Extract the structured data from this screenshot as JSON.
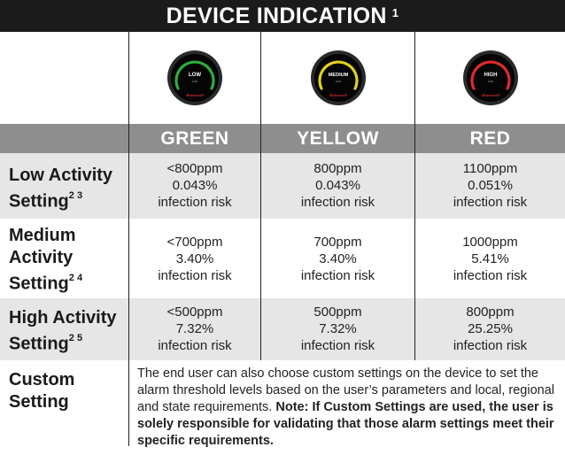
{
  "title": "DEVICE INDICATION",
  "title_sup": "1",
  "devices": [
    {
      "screen_label": "LOW",
      "ring_color": "#2fae3c",
      "brand": "Honeywell"
    },
    {
      "screen_label": "MEDIUM",
      "ring_color": "#e2d11c",
      "brand": "Honeywell"
    },
    {
      "screen_label": "HIGH",
      "ring_color": "#e02a2a",
      "brand": "Honeywell"
    }
  ],
  "columns": [
    "GREEN",
    "YELLOW",
    "RED"
  ],
  "rows": [
    {
      "label_lines": [
        "Low Activity",
        "Setting"
      ],
      "label_sup": "2 3",
      "cells": [
        [
          "<800ppm",
          "0.043%",
          "infection risk"
        ],
        [
          "800ppm",
          "0.043%",
          "infection risk"
        ],
        [
          "1100ppm",
          "0.051%",
          "infection risk"
        ]
      ]
    },
    {
      "label_lines": [
        "Medium",
        "Activity",
        "Setting"
      ],
      "label_sup": "2 4",
      "cells": [
        [
          "<700ppm",
          "3.40%",
          "infection risk"
        ],
        [
          "700ppm",
          "3.40%",
          "infection risk"
        ],
        [
          "1000ppm",
          "5.41%",
          "infection risk"
        ]
      ]
    },
    {
      "label_lines": [
        "High Activity",
        "Setting"
      ],
      "label_sup": "2 5",
      "cells": [
        [
          "<500ppm",
          "7.32%",
          "infection risk"
        ],
        [
          "500ppm",
          "7.32%",
          "infection risk"
        ],
        [
          "800ppm",
          "25.25%",
          "infection risk"
        ]
      ]
    }
  ],
  "custom": {
    "label_lines": [
      "Custom",
      "Setting"
    ],
    "text": "The end user can also choose custom settings on the device to set the alarm threshold levels based on the user’s parameters and local, regional and state requirements. ",
    "note": "Note: If Custom Settings are used, the user is solely responsible for validating that those alarm settings meet their specific requirements."
  }
}
